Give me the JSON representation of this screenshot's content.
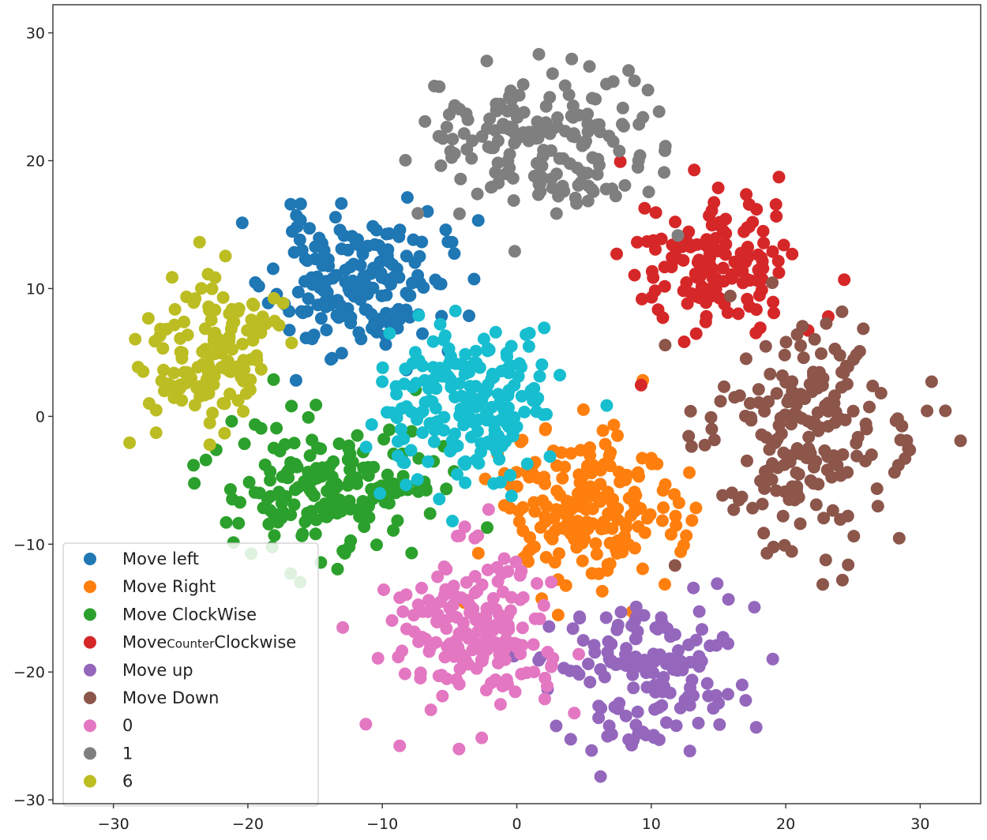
{
  "chart_data": {
    "type": "scatter",
    "title": "",
    "xlabel": "",
    "ylabel": "",
    "xlim": [
      -34.5,
      34.5
    ],
    "ylim": [
      -30.3,
      32.2
    ],
    "x_ticks": [
      -30,
      -20,
      -10,
      0,
      10,
      20,
      30
    ],
    "y_ticks": [
      -30,
      -20,
      -10,
      0,
      10,
      20,
      30
    ],
    "x_tick_labels": [
      "−30",
      "−20",
      "−10",
      "0",
      "10",
      "20",
      "30"
    ],
    "y_tick_labels": [
      "−30",
      "−20",
      "−10",
      "0",
      "10",
      "20",
      "30"
    ],
    "grid": false,
    "legend_position": "lower-left",
    "series": [
      {
        "name": "Move left",
        "color": "#1f77b4",
        "center": [
          -12,
          10.5
        ],
        "spread": [
          4.2,
          3.6
        ],
        "count": 180,
        "seed": 11
      },
      {
        "name": "Move Right",
        "color": "#ff7f0e",
        "center": [
          5,
          -7.5
        ],
        "spread": [
          4.6,
          4.2
        ],
        "count": 200,
        "seed": 23
      },
      {
        "name": "Move ClockWise",
        "color": "#2ca02c",
        "center": [
          -13.5,
          -5.5
        ],
        "spread": [
          5.2,
          3.6
        ],
        "count": 180,
        "seed": 37
      },
      {
        "name": "MoveCounterClockwise",
        "name_parts": [
          "Move",
          "Counter",
          "Clockwise"
        ],
        "color": "#d62728",
        "center": [
          15,
          12
        ],
        "spread": [
          3.8,
          3.8
        ],
        "count": 150,
        "seed": 41
      },
      {
        "name": "Move up",
        "color": "#9467bd",
        "center": [
          9.5,
          -20
        ],
        "spread": [
          4.8,
          3.8
        ],
        "count": 150,
        "seed": 53
      },
      {
        "name": "Move Down",
        "color": "#8c564b",
        "center": [
          21.5,
          -1
        ],
        "spread": [
          5.2,
          6.0
        ],
        "count": 200,
        "seed": 67
      },
      {
        "name": "0",
        "color": "#e377c2",
        "center": [
          -3,
          -16.5
        ],
        "spread": [
          4.4,
          4.2
        ],
        "count": 180,
        "seed": 71
      },
      {
        "name": "1",
        "color": "#7f7f7f",
        "center": [
          1.5,
          21.5
        ],
        "spread": [
          6.2,
          4.0
        ],
        "count": 180,
        "seed": 83
      },
      {
        "name": "6",
        "color": "#bcbd22",
        "center": [
          -23,
          5
        ],
        "spread": [
          3.4,
          4.2
        ],
        "count": 140,
        "seed": 97
      },
      {
        "name": "",
        "color": "#17becf",
        "center": [
          -3.5,
          1
        ],
        "spread": [
          4.2,
          4.2
        ],
        "count": 200,
        "seed": 101
      }
    ]
  }
}
